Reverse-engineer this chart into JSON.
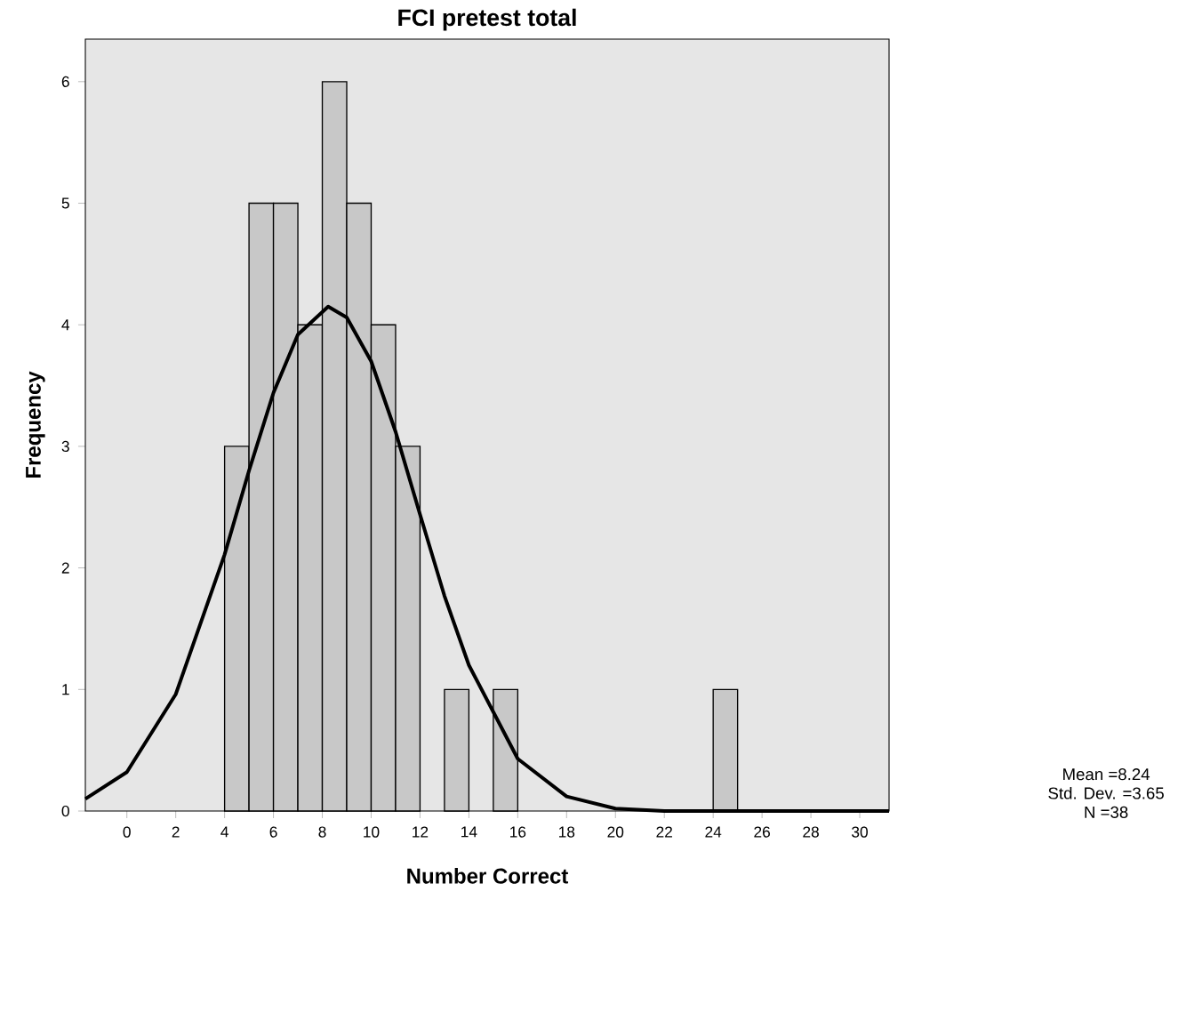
{
  "chart_data": {
    "type": "histogram",
    "title": "FCI pretest total",
    "xlabel": "Number Correct",
    "ylabel": "Frequency",
    "bins": [
      4,
      5,
      6,
      7,
      8,
      9,
      10,
      11,
      12,
      13,
      14,
      15,
      16,
      17,
      18,
      19,
      20,
      21,
      22,
      23,
      24,
      25
    ],
    "values": [
      3,
      5,
      5,
      4,
      6,
      5,
      4,
      3,
      0,
      1,
      0,
      1,
      0,
      0,
      0,
      0,
      0,
      0,
      0,
      0,
      1
    ],
    "color": "#c8c8c8",
    "series": [
      {
        "type": "line",
        "color": "#000000",
        "x": [
          -1.7,
          0,
          2,
          4,
          5,
          6,
          7,
          8.24,
          9,
          10,
          11,
          12,
          13,
          14,
          16,
          18,
          20,
          22,
          31.2
        ],
        "values": [
          0.1,
          0.32,
          0.96,
          2.11,
          2.8,
          3.44,
          3.92,
          4.15,
          4.06,
          3.7,
          3.12,
          2.44,
          1.77,
          1.2,
          0.43,
          0.12,
          0.02,
          0.0,
          0.0
        ]
      }
    ],
    "xlim": [
      -1.7,
      31.2
    ],
    "ylim": [
      0,
      6.35
    ],
    "xticks": [
      0,
      2,
      4,
      6,
      8,
      10,
      12,
      14,
      16,
      18,
      20,
      22,
      24,
      26,
      28,
      30
    ],
    "yticks": [
      0,
      1,
      2,
      3,
      4,
      5,
      6
    ],
    "grid": false,
    "annotations": [
      "Mean =8.24",
      "Std. Dev. =3.65",
      "N =38"
    ]
  }
}
